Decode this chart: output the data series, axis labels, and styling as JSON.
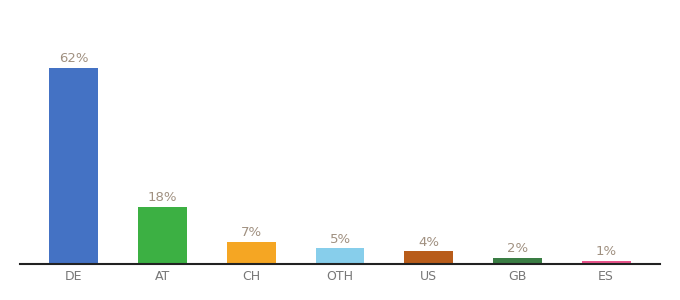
{
  "categories": [
    "DE",
    "AT",
    "CH",
    "OTH",
    "US",
    "GB",
    "ES"
  ],
  "values": [
    62,
    18,
    7,
    5,
    4,
    2,
    1
  ],
  "bar_colors": [
    "#4472c4",
    "#3cb043",
    "#f5a623",
    "#87ceeb",
    "#b85c1a",
    "#3a7d44",
    "#e8538a"
  ],
  "label_color": "#a09080",
  "background_color": "#ffffff",
  "bar_width": 0.55,
  "ylim": [
    0,
    72
  ],
  "label_fontsize": 9.5,
  "tick_fontsize": 9,
  "tick_color": "#777777"
}
